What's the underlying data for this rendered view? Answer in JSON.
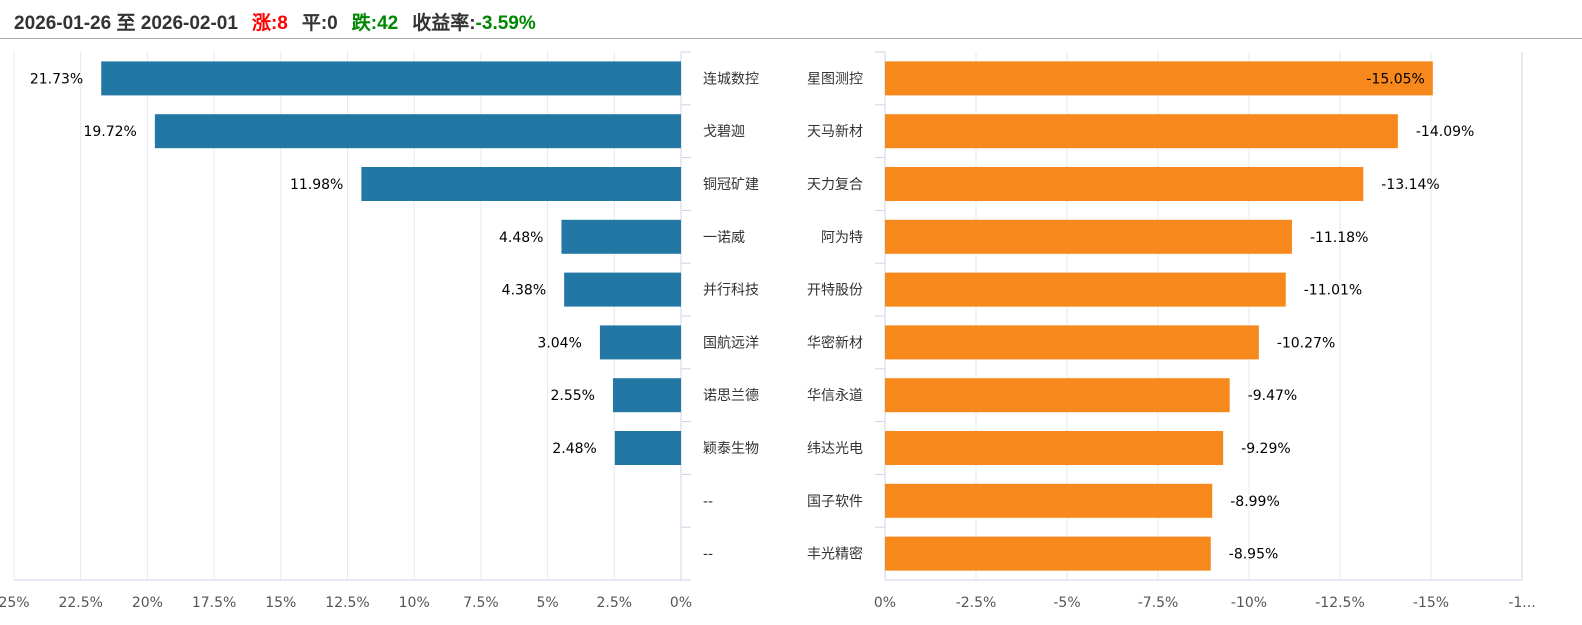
{
  "header": {
    "range": "2026-01-26 至 2026-02-01",
    "up_label": "涨:",
    "up": "8",
    "flat_label": "平:",
    "flat": "0",
    "down_label": "跌:",
    "down": "42",
    "return_label": "收益率:",
    "return": "-3.59%"
  },
  "colors": {
    "gain": "#2277a4",
    "loss": "#f7891c",
    "up_text": "#ff0000",
    "down_text": "#008800"
  },
  "chart_data": [
    {
      "type": "bar",
      "orientation": "horizontal",
      "title": "gainers",
      "categories": [
        "连城数控",
        "戈碧迦",
        "铜冠矿建",
        "一诺威",
        "并行科技",
        "国航远洋",
        "诺思兰德",
        "颖泰生物",
        "--",
        "--"
      ],
      "values": [
        21.73,
        19.72,
        11.98,
        4.48,
        4.38,
        3.04,
        2.55,
        2.48,
        null,
        null
      ],
      "labels": [
        "21.73%",
        "19.72%",
        "11.98%",
        "4.48%",
        "4.38%",
        "3.04%",
        "2.55%",
        "2.48%",
        "",
        ""
      ],
      "xlim": [
        25,
        0
      ],
      "ticks": [
        "25%",
        "22.5%",
        "20%",
        "17.5%",
        "15%",
        "12.5%",
        "10%",
        "7.5%",
        "5%",
        "2.5%",
        "0%"
      ],
      "grid": true
    },
    {
      "type": "bar",
      "orientation": "horizontal",
      "title": "losers",
      "categories": [
        "星图测控",
        "天马新材",
        "天力复合",
        "阿为特",
        "开特股份",
        "华密新材",
        "华信永道",
        "纬达光电",
        "国子软件",
        "丰光精密"
      ],
      "values": [
        -15.05,
        -14.09,
        -13.14,
        -11.18,
        -11.01,
        -10.27,
        -9.47,
        -9.29,
        -8.99,
        -8.95
      ],
      "labels": [
        "-15.05%",
        "-14.09%",
        "-13.14%",
        "-11.18%",
        "-11.01%",
        "-10.27%",
        "-9.47%",
        "-9.29%",
        "-8.99%",
        "-8.95%"
      ],
      "xlim": [
        0,
        -17.5
      ],
      "ticks": [
        "0%",
        "-2.5%",
        "-5%",
        "-7.5%",
        "-10%",
        "-12.5%",
        "-15%",
        "-1..."
      ],
      "grid": true
    }
  ]
}
